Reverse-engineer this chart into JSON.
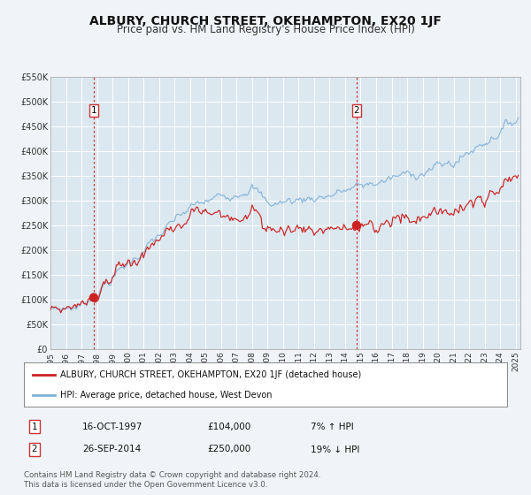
{
  "title": "ALBURY, CHURCH STREET, OKEHAMPTON, EX20 1JF",
  "subtitle": "Price paid vs. HM Land Registry's House Price Index (HPI)",
  "title_fontsize": 10,
  "subtitle_fontsize": 8.5,
  "background_color": "#f0f4f8",
  "plot_bg_color": "#dce8f0",
  "grid_color": "#c8d8e8",
  "sale1_date_x": 1997.79,
  "sale1_price": 104000,
  "sale2_date_x": 2014.74,
  "sale2_price": 250000,
  "vline_color": "#cc3333",
  "red_line_color": "#cc2222",
  "blue_line_color": "#80b0d8",
  "dot_color": "#cc2222",
  "ylim_min": 0,
  "ylim_max": 550000,
  "xlim_start": 1995.0,
  "xlim_end": 2025.3,
  "yticks": [
    0,
    50000,
    100000,
    150000,
    200000,
    250000,
    300000,
    350000,
    400000,
    450000,
    500000,
    550000
  ],
  "ytick_labels": [
    "£0",
    "£50K",
    "£100K",
    "£150K",
    "£200K",
    "£250K",
    "£300K",
    "£350K",
    "£400K",
    "£450K",
    "£500K",
    "£550K"
  ],
  "xticks": [
    1995,
    1996,
    1997,
    1998,
    1999,
    2000,
    2001,
    2002,
    2003,
    2004,
    2005,
    2006,
    2007,
    2008,
    2009,
    2010,
    2011,
    2012,
    2013,
    2014,
    2015,
    2016,
    2017,
    2018,
    2019,
    2020,
    2021,
    2022,
    2023,
    2024,
    2025
  ],
  "legend_label_red": "ALBURY, CHURCH STREET, OKEHAMPTON, EX20 1JF (detached house)",
  "legend_label_blue": "HPI: Average price, detached house, West Devon",
  "footnote": "Contains HM Land Registry data © Crown copyright and database right 2024.\nThis data is licensed under the Open Government Licence v3.0.",
  "info1_num": "1",
  "info1_date": "16-OCT-1997",
  "info1_price": "£104,000",
  "info1_hpi": "7% ↑ HPI",
  "info2_num": "2",
  "info2_date": "26-SEP-2014",
  "info2_price": "£250,000",
  "info2_hpi": "19% ↓ HPI"
}
